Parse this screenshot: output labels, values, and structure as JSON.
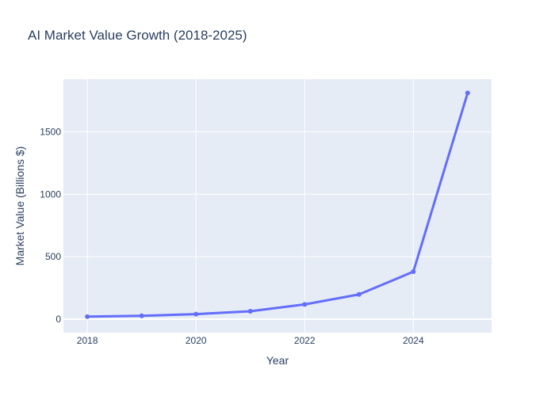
{
  "chart_data": {
    "type": "line",
    "title": "AI Market Value Growth (2018-2025)",
    "xlabel": "Year",
    "ylabel": "Market Value (Billions $)",
    "x": [
      2018,
      2019,
      2020,
      2021,
      2022,
      2023,
      2024,
      2025
    ],
    "series": [
      {
        "name": "",
        "values": [
          20,
          27,
          40,
          63,
          118,
          198,
          380,
          1811
        ]
      }
    ],
    "xlim": [
      2017.56,
      2025.44
    ],
    "ylim": [
      -108,
      1921
    ],
    "x_ticks": [
      2018,
      2020,
      2022,
      2024
    ],
    "y_ticks": [
      0,
      500,
      1000,
      1500
    ],
    "x_tick_labels": [
      "2018",
      "2020",
      "2022",
      "2024"
    ],
    "y_tick_labels": [
      "0",
      "500",
      "1000",
      "1500"
    ],
    "grid": true,
    "legend": "none",
    "colors": {
      "line": "#636efa",
      "plot_background": "#e5ecf6",
      "grid": "#ffffff",
      "text": "#2a3f5f"
    }
  }
}
